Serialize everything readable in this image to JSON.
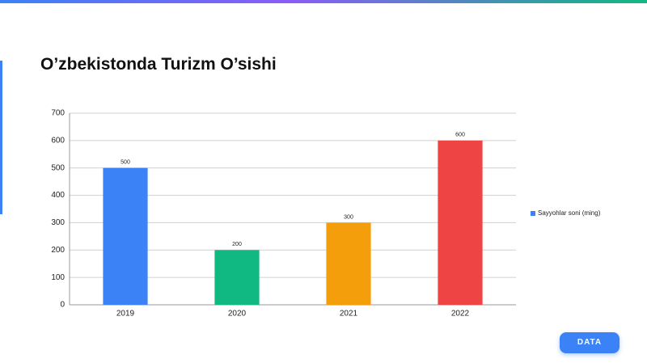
{
  "title": "O’zbekistonda Turizm O’sishi",
  "button": "DATA",
  "chart_data": {
    "type": "bar",
    "categories": [
      "2019",
      "2020",
      "2021",
      "2022"
    ],
    "series": [
      {
        "name": "Sayyohlar soni (ming)",
        "color": "#3b82f6",
        "colors": [
          "#3b82f6",
          "#10b981",
          "#f59e0b",
          "#ef4444"
        ],
        "values": [
          500,
          200,
          300,
          600
        ]
      }
    ],
    "ylim": [
      0,
      700
    ],
    "yticks": [
      0,
      100,
      200,
      300,
      400,
      500,
      600,
      700
    ],
    "grid": true,
    "legend": "right"
  }
}
